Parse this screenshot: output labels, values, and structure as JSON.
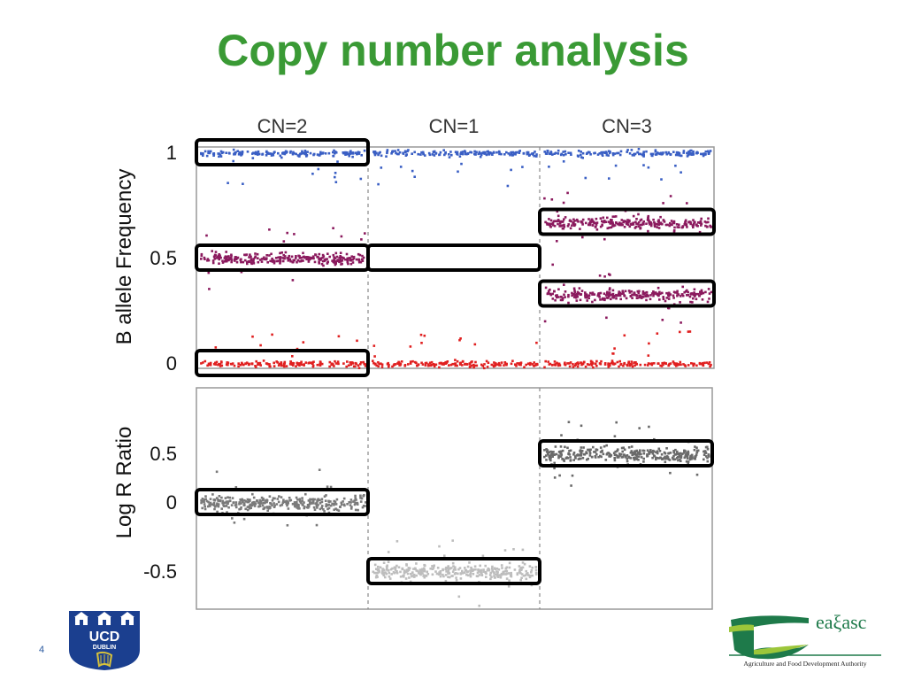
{
  "slide": {
    "title": "Copy number analysis",
    "page_number": "4"
  },
  "logos": {
    "left": {
      "icon": "ucd-dublin-logo",
      "text_top": "UCD",
      "text_bottom": "DUBLIN",
      "color": "#1b3f8f"
    },
    "right": {
      "icon": "teagasc-logo",
      "name": "eaξasc",
      "tagline": "Agriculture and Food Development Authority",
      "color": "#1e7a4a"
    }
  },
  "chart_data": [
    {
      "type": "scatter",
      "panel": "top",
      "title": "",
      "xlabel": "",
      "ylabel": "B allele Frequency",
      "ylim": [
        0,
        1
      ],
      "yticks": [
        {
          "value": 1,
          "label": "1"
        },
        {
          "value": 0.5,
          "label": "0.5"
        },
        {
          "value": 0,
          "label": "0"
        }
      ],
      "segments": [
        {
          "label": "CN=2",
          "start": 0,
          "end": 1
        },
        {
          "label": "CN=1",
          "start": 1,
          "end": 2
        },
        {
          "label": "CN=3",
          "start": 2,
          "end": 3
        }
      ],
      "bands": [
        {
          "segment": "CN=2",
          "y": 1.0,
          "color": "#3a5fc4"
        },
        {
          "segment": "CN=1",
          "y": 1.0,
          "color": "#3a5fc4"
        },
        {
          "segment": "CN=3",
          "y": 1.0,
          "color": "#3a5fc4"
        },
        {
          "segment": "CN=2",
          "y": 0.5,
          "color": "#8b1a5e"
        },
        {
          "segment": "CN=3",
          "y": 0.67,
          "color": "#8b1a5e"
        },
        {
          "segment": "CN=3",
          "y": 0.33,
          "color": "#8b1a5e"
        },
        {
          "segment": "CN=2",
          "y": 0.0,
          "color": "#e02020"
        },
        {
          "segment": "CN=1",
          "y": 0.0,
          "color": "#e02020"
        },
        {
          "segment": "CN=3",
          "y": 0.0,
          "color": "#e02020"
        }
      ],
      "highlight_boxes": [
        {
          "segment": "CN=2",
          "y": 1.0
        },
        {
          "segment": "CN=2",
          "y": 0.5
        },
        {
          "segment": "CN=2",
          "y": 0.0
        },
        {
          "segment": "CN=1",
          "y": 0.5
        },
        {
          "segment": "CN=3",
          "y": 0.67
        },
        {
          "segment": "CN=3",
          "y": 0.33
        }
      ]
    },
    {
      "type": "scatter",
      "panel": "bottom",
      "title": "",
      "xlabel": "",
      "ylabel": "Log R Ratio",
      "ylim": [
        -0.75,
        0.85
      ],
      "yticks": [
        {
          "value": 0.5,
          "label": "0.5"
        },
        {
          "value": 0,
          "label": "0"
        },
        {
          "value": -0.5,
          "label": "-0.5"
        }
      ],
      "segments": [
        {
          "label": "CN=2",
          "start": 0,
          "end": 1
        },
        {
          "label": "CN=1",
          "start": 1,
          "end": 2
        },
        {
          "label": "CN=3",
          "start": 2,
          "end": 3
        }
      ],
      "bands": [
        {
          "segment": "CN=2",
          "y": 0.0,
          "color": "#7a7a7a"
        },
        {
          "segment": "CN=1",
          "y": -0.5,
          "color": "#bdbdbd"
        },
        {
          "segment": "CN=3",
          "y": 0.5,
          "color": "#6a6a6a"
        }
      ],
      "highlight_boxes": [
        {
          "segment": "CN=2",
          "y": 0.0
        },
        {
          "segment": "CN=1",
          "y": -0.5
        },
        {
          "segment": "CN=3",
          "y": 0.5
        }
      ]
    }
  ]
}
